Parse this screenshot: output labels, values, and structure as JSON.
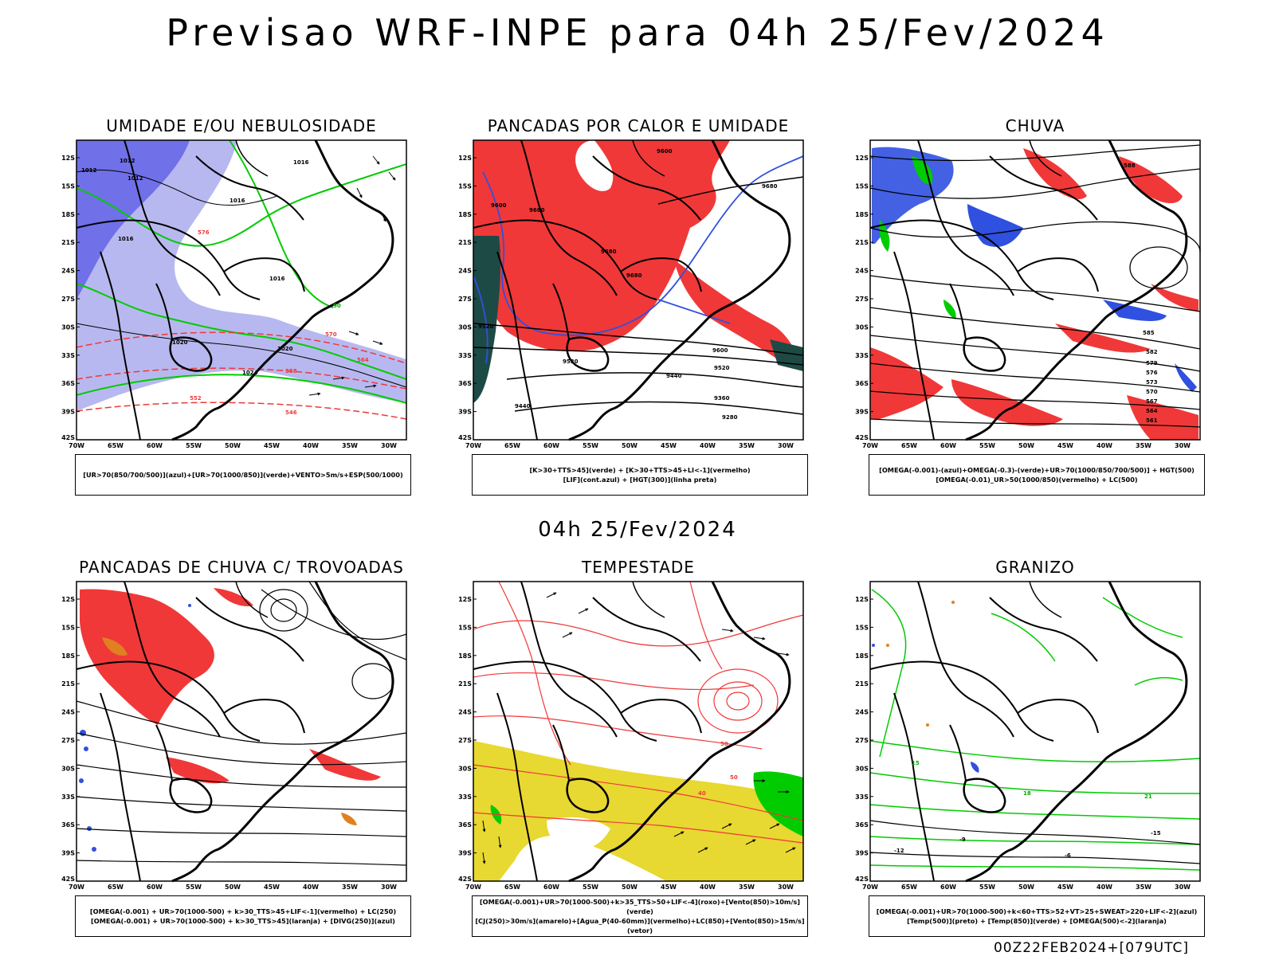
{
  "header": {
    "title": "Previsao WRF-INPE  para 04h 25/Fev/2024"
  },
  "middle": {
    "timestamp": "04h 25/Fev/2024"
  },
  "footer": {
    "run": "00Z22FEB2024+[079UTC]"
  },
  "axes": {
    "lat_labels": [
      "12S",
      "15S",
      "18S",
      "21S",
      "24S",
      "27S",
      "30S",
      "33S",
      "36S",
      "39S",
      "42S"
    ],
    "lon_labels": [
      "70W",
      "65W",
      "60W",
      "55W",
      "50W",
      "45W",
      "40W",
      "35W",
      "30W"
    ]
  },
  "colors": {
    "blue_humid": "#7070e8",
    "light_blue": "#b8b8f0",
    "green": "#00cc00",
    "red": "#f03838",
    "dark_teal": "#1e4a46",
    "yellow": "#e8d832",
    "orange": "#e08020",
    "purple": "#a020a0"
  },
  "panels": [
    {
      "title": "UMIDADE E/OU NEBULOSIDADE",
      "legend": [
        "[UR>70(850/700/500)](azul)+[UR>70(1000/850)](verde)+VENTO>5m/s+ESP(500/1000)"
      ],
      "contour_labels": [
        "1012",
        "1012",
        "1012",
        "1016",
        "1016",
        "1016",
        "1016",
        "1020",
        "1020",
        "1024",
        "576",
        "570",
        "564",
        "558",
        "552",
        "546",
        "90"
      ]
    },
    {
      "title": "PANCADAS POR CALOR E UMIDADE",
      "legend": [
        "[K>30+TTS>45](verde) + [K>30+TTS>45+LI<-1](vermelho)",
        "[LIF](cont.azul) + [HGT(300)](linha preta)"
      ],
      "contour_labels": [
        "9600",
        "9680",
        "9680",
        "9600",
        "9680",
        "9680",
        "9520",
        "9440",
        "9360",
        "9280",
        "9520",
        "9600",
        "9520",
        "9440"
      ]
    },
    {
      "title": "CHUVA",
      "legend": [
        "[OMEGA(-0.001)-(azul)+OMEGA(-0.3)-(verde)+UR>70(1000/850/700/500)] + HGT(500)",
        "[OMEGA(-0.01)_UR>50(1000/850)(vermelho) + LC(500)"
      ],
      "contour_labels": [
        "588",
        "585",
        "582",
        "579",
        "576",
        "573",
        "570",
        "567",
        "564",
        "561"
      ]
    },
    {
      "title": "PANCADAS DE CHUVA C/ TROVOADAS",
      "legend": [
        "[OMEGA(-0.001) + UR>70(1000-500) + k>30_TTS>45+LIF<-1](vermelho) + LC(250)",
        "[OMEGA(-0.001) + UR>70(1000-500) + k>30_TTS>45](laranja) + [DIVG(250)](azul)"
      ],
      "contour_labels": []
    },
    {
      "title": "TEMPESTADE",
      "legend": [
        "[OMEGA(-0.001)+UR>70(1000-500)+k>35_TTS>50+LIF<-4](roxo)+[Vento(850)>10m/s](verde)",
        "[CJ(250)>30m/s](amarelo)+[Agua_P(40-60mm)](vermelho)+LC(850)+[Vento(850)>15m/s](vetor)"
      ],
      "contour_labels": [
        "50",
        "50",
        "40"
      ]
    },
    {
      "title": "GRANIZO",
      "legend": [
        "[OMEGA(-0.001)+UR>70(1000-500)+k<60+TTS>52+VT>25+SWEAT>220+LIF<-2](azul)",
        "[Temp(500)](preto) + [Temp(850)](verde) + [OMEGA(500)<-2](laranja)"
      ],
      "contour_labels": [
        "-15",
        "-12",
        "-9",
        "-6",
        "15",
        "18",
        "21"
      ]
    }
  ]
}
